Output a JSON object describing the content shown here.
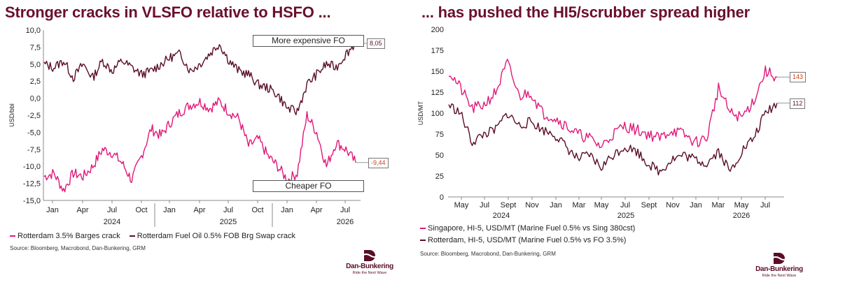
{
  "colors": {
    "title": "#6b0f2e",
    "pink": "#e0197a",
    "maroon": "#5a0d28",
    "endlabel_pink": "#c9401a"
  },
  "left": {
    "title": "Stronger cracks in VLSFO relative to HSFO ...",
    "ylabel": "USD/bbl",
    "yticks": [
      "10,0",
      "7,5",
      "5,0",
      "2,5",
      "0,0",
      "-2,5",
      "-5,0",
      "-7,5",
      "-10,0",
      "-12,5",
      "-15,0"
    ],
    "xticks": [
      "Jan",
      "Apr",
      "Jul",
      "Oct",
      "Jan",
      "Apr",
      "Jul",
      "Oct",
      "Jan",
      "Apr",
      "Jul"
    ],
    "years": [
      "2024",
      "2025",
      "2026"
    ],
    "annotation_top": "More expensive FO",
    "annotation_bottom": "Cheaper FO",
    "end_label_maroon": "8,05",
    "end_label_pink": "-9,44",
    "legend": [
      "Rotterdam 3.5% Barges crack",
      "Rotterdam Fuel Oil 0.5% FOB Brg Swap crack"
    ],
    "source": "Source: Bloomberg, Macrobond, Dan-Bunkering, GRM"
  },
  "right": {
    "title": "... has pushed the HI5/scrubber spread higher",
    "ylabel": "USD/MT",
    "yticks": [
      "200",
      "175",
      "150",
      "125",
      "100",
      "75",
      "50",
      "25",
      "0"
    ],
    "xticks": [
      "May",
      "Jul",
      "Sept",
      "Nov",
      "Jan",
      "Mar",
      "May",
      "Jul",
      "Sept",
      "Nov",
      "Jan",
      "Mar",
      "May",
      "Jul"
    ],
    "years": [
      "2024",
      "2025",
      "2026"
    ],
    "end_label_pink": "143",
    "end_label_maroon": "112",
    "legend": [
      "Singapore, HI-5, USD/MT  (Marine Fuel 0.5% vs Sing 380cst)",
      "Rotterdam, HI-5, USD/MT (Marine Fuel 0.5% vs FO 3.5%)"
    ],
    "source": "Source: Bloomberg, Macrobond, Dan-Bunkering, GRM"
  },
  "logo": {
    "name": "Dan-Bunkering",
    "tagline": "Ride the Next Wave"
  },
  "chart_data": [
    {
      "type": "line",
      "title": "Stronger cracks in VLSFO relative to HSFO ...",
      "ylabel": "USD/bbl",
      "ylim": [
        -15,
        10
      ],
      "x": [
        "2023-12",
        "2024-01",
        "2024-02",
        "2024-03",
        "2024-04",
        "2024-05",
        "2024-06",
        "2024-07",
        "2024-08",
        "2024-09",
        "2024-10",
        "2024-11",
        "2024-12",
        "2025-01",
        "2025-02",
        "2025-03",
        "2025-04",
        "2025-05",
        "2025-06",
        "2025-07",
        "2025-08",
        "2025-09",
        "2025-10",
        "2025-11",
        "2025-12",
        "2026-01",
        "2026-02",
        "2026-03",
        "2026-04",
        "2026-05",
        "2026-06",
        "2026-07",
        "2026-08"
      ],
      "series": [
        {
          "name": "Rotterdam 3.5% Barges crack",
          "color": "#e0197a",
          "values": [
            -11.5,
            -11.0,
            -13.5,
            -11.0,
            -11.5,
            -10.0,
            -7.5,
            -8.0,
            -9.5,
            -12.0,
            -8.5,
            -4.5,
            -5.5,
            -3.5,
            -2.0,
            -1.0,
            -0.5,
            -1.5,
            -0.5,
            -2.0,
            -3.0,
            -7.0,
            -6.0,
            -8.5,
            -10.0,
            -12.0,
            -11.0,
            -2.5,
            -5.0,
            -10.0,
            -6.5,
            -7.5,
            -9.44
          ]
        },
        {
          "name": "Rotterdam Fuel Oil 0.5% FOB Brg Swap crack",
          "color": "#5a0d28",
          "values": [
            5.0,
            4.5,
            5.5,
            3.0,
            5.0,
            3.0,
            5.5,
            4.0,
            5.5,
            4.5,
            3.5,
            4.0,
            5.0,
            6.0,
            6.5,
            4.0,
            5.0,
            6.5,
            8.0,
            5.5,
            4.0,
            3.5,
            2.0,
            1.5,
            0.5,
            -1.5,
            -2.0,
            2.0,
            3.5,
            5.0,
            4.5,
            6.5,
            8.05
          ]
        }
      ]
    },
    {
      "type": "line",
      "title": "... has pushed the HI5/scrubber spread higher",
      "ylabel": "USD/MT",
      "ylim": [
        0,
        200
      ],
      "x": [
        "2024-04",
        "2024-05",
        "2024-06",
        "2024-07",
        "2024-08",
        "2024-09",
        "2024-10",
        "2024-11",
        "2024-12",
        "2025-01",
        "2025-02",
        "2025-03",
        "2025-04",
        "2025-05",
        "2025-06",
        "2025-07",
        "2025-08",
        "2025-09",
        "2025-10",
        "2025-11",
        "2025-12",
        "2026-01",
        "2026-02",
        "2026-03",
        "2026-04",
        "2026-05",
        "2026-06",
        "2026-07",
        "2026-08"
      ],
      "series": [
        {
          "name": "Singapore, HI-5, USD/MT  (Marine Fuel 0.5% vs Sing 380cst)",
          "color": "#e0197a",
          "values": [
            150,
            130,
            105,
            110,
            125,
            160,
            120,
            125,
            100,
            95,
            85,
            75,
            70,
            60,
            75,
            85,
            80,
            75,
            70,
            80,
            75,
            65,
            70,
            130,
            100,
            95,
            115,
            150,
            143
          ]
        },
        {
          "name": "Rotterdam, HI-5, USD/MT (Marine Fuel 0.5% vs FO 3.5%)",
          "color": "#5a0d28",
          "values": [
            110,
            100,
            65,
            75,
            80,
            100,
            85,
            90,
            80,
            75,
            60,
            45,
            50,
            35,
            50,
            60,
            55,
            40,
            30,
            45,
            50,
            45,
            40,
            55,
            30,
            55,
            70,
            100,
            112
          ]
        }
      ]
    }
  ]
}
